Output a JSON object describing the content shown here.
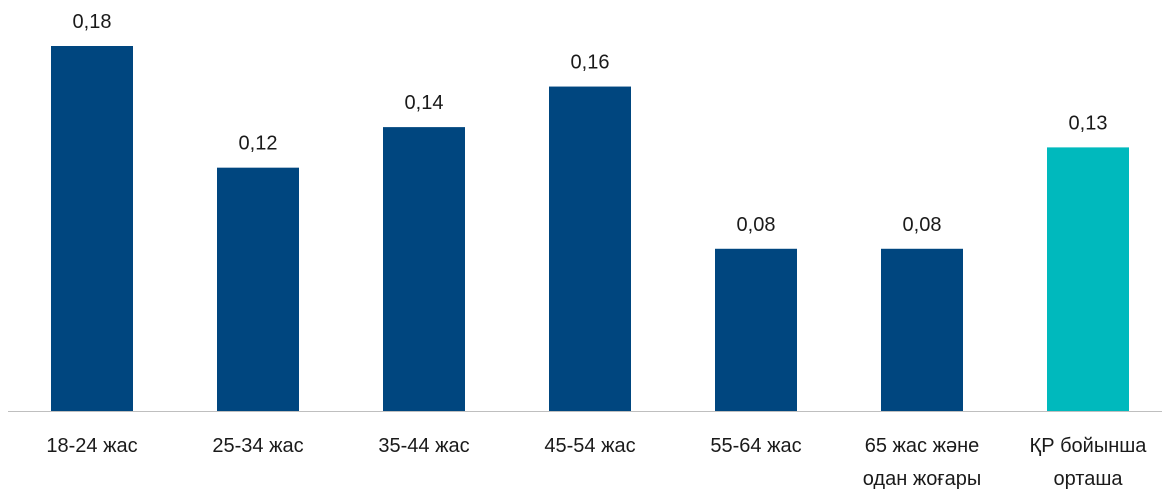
{
  "chart_data": {
    "type": "bar",
    "categories": [
      [
        "18-24 жас"
      ],
      [
        "25-34 жас"
      ],
      [
        "35-44 жас"
      ],
      [
        "45-54 жас"
      ],
      [
        "55-64 жас"
      ],
      [
        "65 жас және",
        "одан жоғары"
      ],
      [
        "ҚР бойынша",
        "орташа"
      ]
    ],
    "values": [
      0.18,
      0.12,
      0.14,
      0.16,
      0.08,
      0.08,
      0.13
    ],
    "value_labels": [
      "0,18",
      "0,12",
      "0,14",
      "0,16",
      "0,08",
      "0,08",
      "0,13"
    ],
    "bar_colors": [
      "#00467f",
      "#00467f",
      "#00467f",
      "#00467f",
      "#00467f",
      "#00467f",
      "#00b9bd"
    ],
    "ylim": [
      0,
      0.18
    ],
    "grid": false,
    "title": "",
    "xlabel": "",
    "ylabel": ""
  },
  "colors": {
    "primary_bar": "#00467f",
    "highlight_bar": "#00b9bd",
    "axis_line": "#bfbfbf"
  }
}
